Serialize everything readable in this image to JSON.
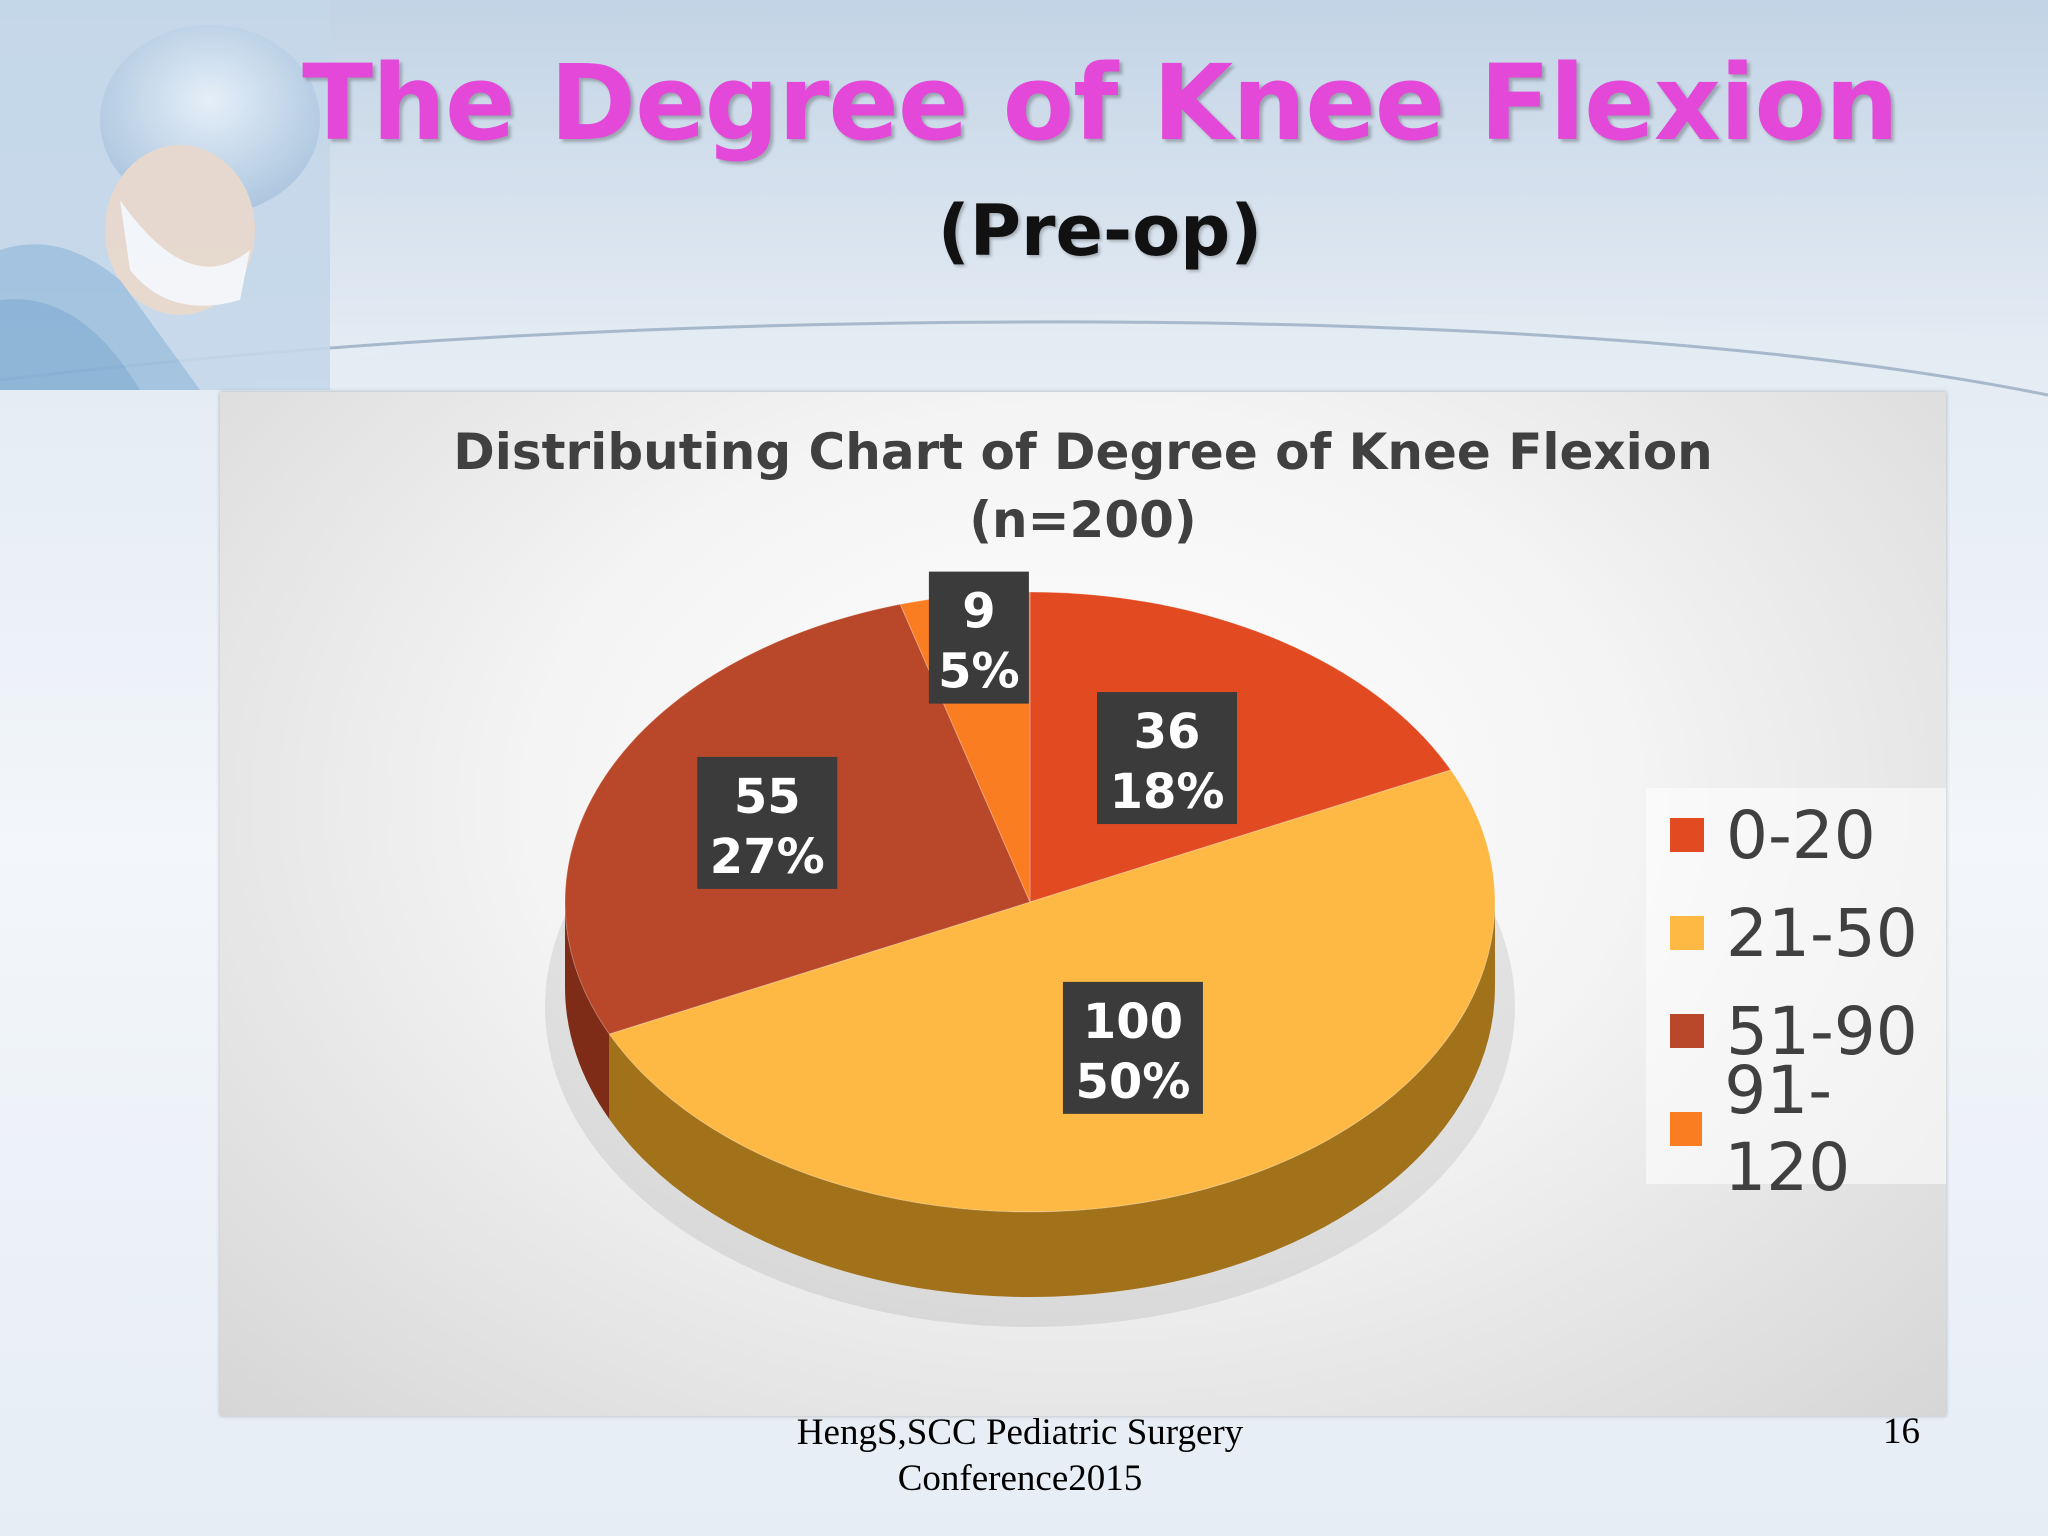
{
  "slide": {
    "title": "The Degree of Knee Flexion",
    "subtitle": "(Pre-op)",
    "footer": "HengS,SCC Pediatric Surgery Conference2015",
    "page_number": "16"
  },
  "chart_data": {
    "type": "pie",
    "title_line1": "Distributing Chart of Degree of Knee Flexion",
    "title_line2": "(n=200)",
    "categories": [
      "0-20",
      "21-50",
      "51-90",
      "91-120"
    ],
    "values": [
      36,
      100,
      55,
      9
    ],
    "percent_labels": [
      "18%",
      "50%",
      "27%",
      "5%"
    ],
    "colors": [
      "#e24a22",
      "#fdb944",
      "#b9482a",
      "#fb7d22"
    ],
    "side_colors": [
      "#9a2f14",
      "#a1721a",
      "#7e2c18",
      "#b35412"
    ],
    "legend_position": "right"
  }
}
